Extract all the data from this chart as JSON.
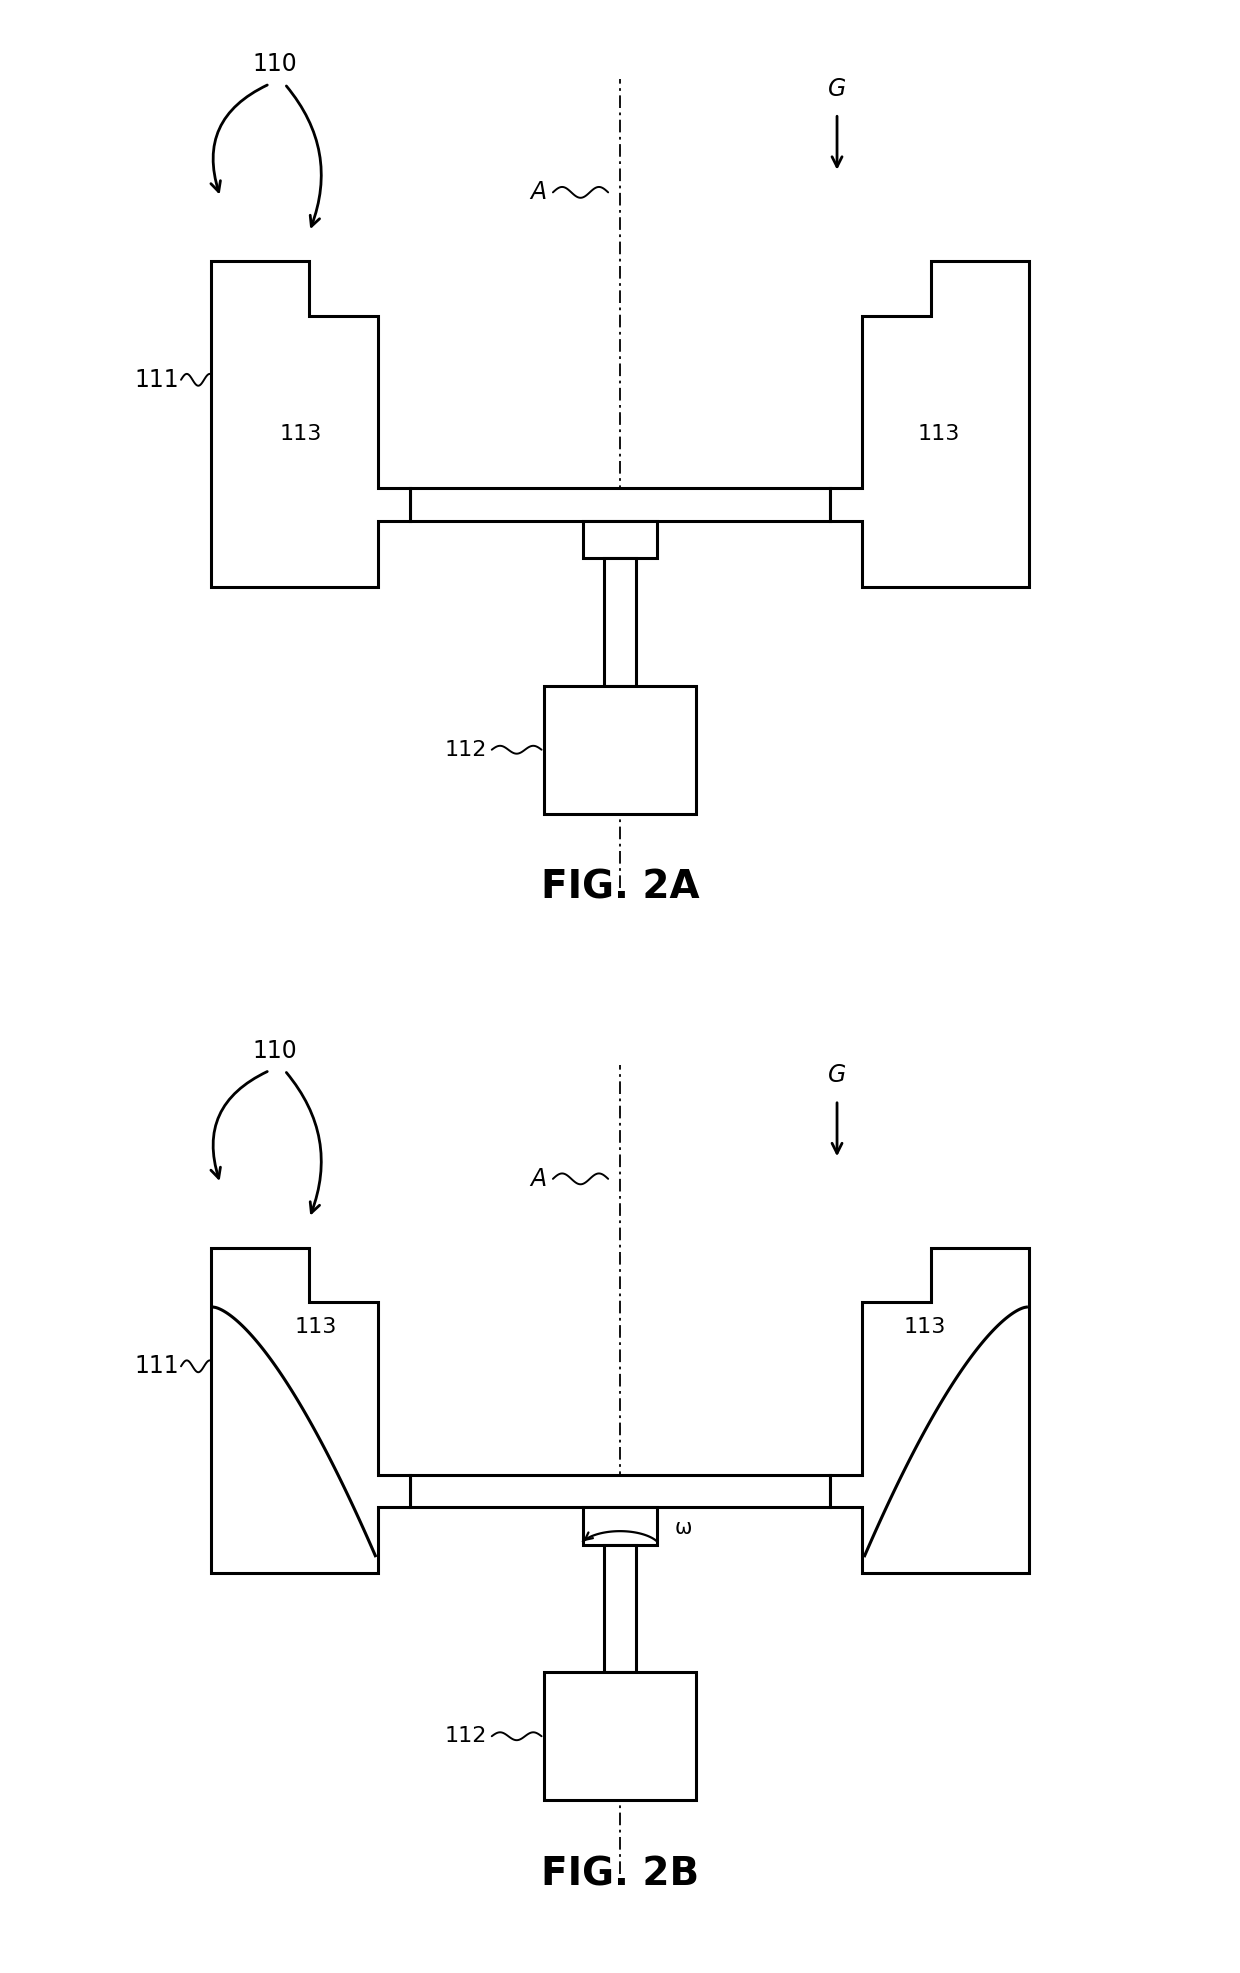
{
  "bg_color": "#ffffff",
  "line_color": "#000000",
  "fig_width": 12.4,
  "fig_height": 19.73,
  "fig2a_label": "FIG. 2A",
  "fig2b_label": "FIG. 2B",
  "label_110": "110",
  "label_111": "111",
  "label_112": "112",
  "label_113": "113",
  "label_A": "A",
  "label_G": "G",
  "label_omega": "ω",
  "hatch_color": "#c8c8c8",
  "lw": 2.2,
  "lw_thin": 1.4
}
